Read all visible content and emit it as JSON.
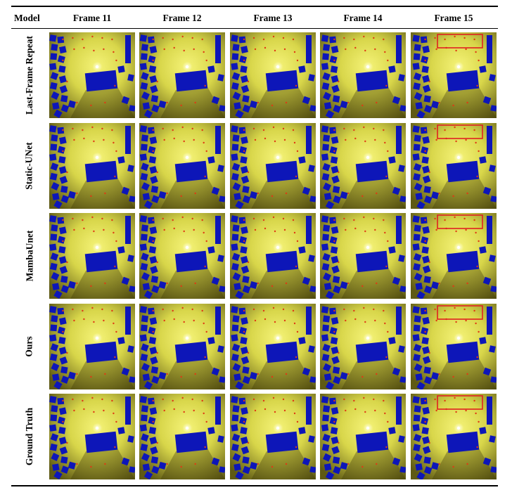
{
  "header": {
    "model_label": "Model",
    "frames": [
      "Frame 11",
      "Frame 12",
      "Frame 13",
      "Frame 14",
      "Frame 15"
    ]
  },
  "rows": [
    {
      "label": "Last-Frame Repeat"
    },
    {
      "label": "Static-UNet"
    },
    {
      "label": "MambaUnet"
    },
    {
      "label": "Ours"
    },
    {
      "label": "Ground Truth"
    }
  ],
  "highlight": {
    "frame_index": 4,
    "color": "#e02020"
  },
  "colors": {
    "background_bright": "#d8d64a",
    "background_dark": "#5f5a14",
    "building": "#0d16b8",
    "light_source": "#ffffe0",
    "marker": "#e03a14"
  }
}
